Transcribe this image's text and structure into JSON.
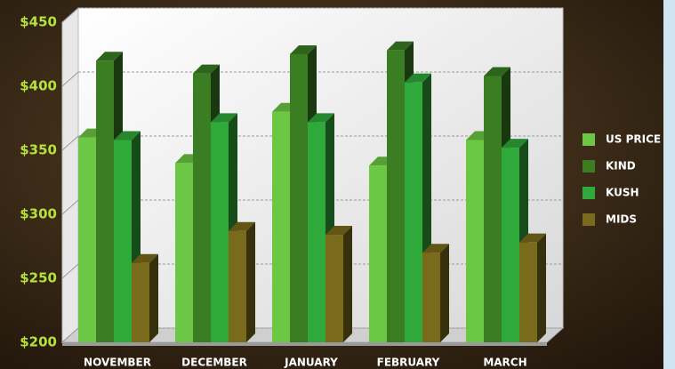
{
  "chart_data": {
    "type": "bar3d",
    "categories": [
      "NOVEMBER",
      "DECEMBER",
      "JANUARY",
      "FEBRUARY",
      "MARCH"
    ],
    "series": [
      {
        "name": "US PRICE",
        "color": "#6cc844",
        "values": [
          360,
          340,
          380,
          338,
          358
        ]
      },
      {
        "name": "KIND",
        "color": "#3a7d22",
        "values": [
          420,
          410,
          425,
          428,
          408
        ]
      },
      {
        "name": "KUSH",
        "color": "#2fa93a",
        "values": [
          358,
          372,
          372,
          403,
          352
        ]
      },
      {
        "name": "MIDS",
        "color": "#7a6a1c",
        "values": [
          262,
          287,
          284,
          270,
          278
        ]
      }
    ],
    "ylim": [
      200,
      450
    ],
    "yticks": [
      {
        "value": 200,
        "label": "$200"
      },
      {
        "value": 250,
        "label": "$250"
      },
      {
        "value": 300,
        "label": "$300"
      },
      {
        "value": 350,
        "label": "$350"
      },
      {
        "value": 400,
        "label": "$400"
      },
      {
        "value": 450,
        "label": "$450"
      }
    ],
    "grid": true,
    "legend": "right"
  }
}
